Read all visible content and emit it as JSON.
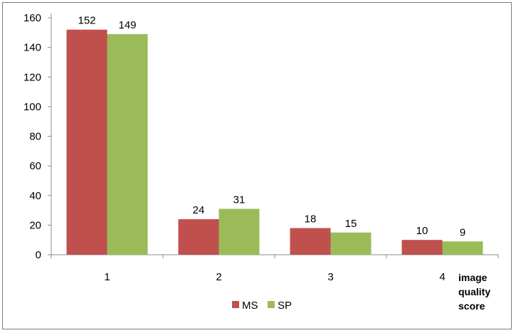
{
  "chart_data": {
    "type": "bar",
    "categories": [
      "1",
      "2",
      "3",
      "4"
    ],
    "series": [
      {
        "name": "MS",
        "values": [
          152,
          24,
          18,
          10
        ],
        "color": "#c0504d"
      },
      {
        "name": "SP",
        "values": [
          149,
          31,
          15,
          9
        ],
        "color": "#9bbb59"
      }
    ],
    "title": "",
    "xlabel": "image quality score",
    "xlabel_lines": [
      "image",
      "quality",
      "score"
    ],
    "ylabel": "",
    "ylim": [
      0,
      160
    ],
    "yticks": [
      0,
      20,
      40,
      60,
      80,
      100,
      120,
      140,
      160
    ],
    "grid": false,
    "legend_position": "bottom",
    "data_labels": true
  }
}
